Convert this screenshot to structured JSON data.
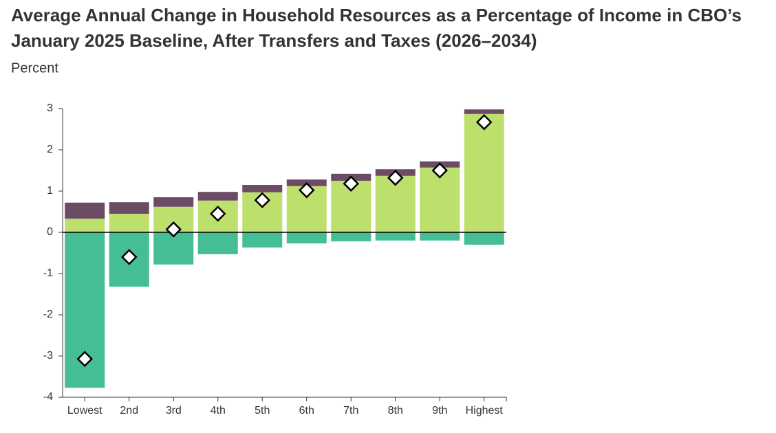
{
  "chart_data": {
    "type": "stacked-bar",
    "title": [
      "Average Annual Change in Household Resources as a Percentage of Income in CBO’s",
      "January 2025 Baseline, After Transfers and Taxes (2026–2034)"
    ],
    "y_label": "Percent",
    "categories": [
      "Lowest",
      "2nd",
      "3rd",
      "4th",
      "5th",
      "6th",
      "7th",
      "8th",
      "9th",
      "Highest"
    ],
    "series": [
      {
        "color": "#bddf6b",
        "values": [
          0.33,
          0.45,
          0.62,
          0.77,
          0.97,
          1.12,
          1.25,
          1.37,
          1.57,
          2.87
        ]
      },
      {
        "color": "#6b4c64",
        "values": [
          0.39,
          0.28,
          0.23,
          0.21,
          0.18,
          0.16,
          0.17,
          0.16,
          0.15,
          0.11
        ]
      },
      {
        "color": "#45bd95",
        "values": [
          -3.77,
          -1.32,
          -0.78,
          -0.53,
          -0.37,
          -0.27,
          -0.22,
          -0.2,
          -0.2,
          -0.3
        ]
      }
    ],
    "net": {
      "color": "#ffffff",
      "values": [
        -3.07,
        -0.6,
        0.07,
        0.45,
        0.78,
        1.02,
        1.18,
        1.32,
        1.5,
        2.67
      ]
    },
    "ylim": [
      -4,
      3
    ],
    "yticks": [
      -4,
      -3,
      -2,
      -1,
      0,
      1,
      2,
      3
    ]
  }
}
